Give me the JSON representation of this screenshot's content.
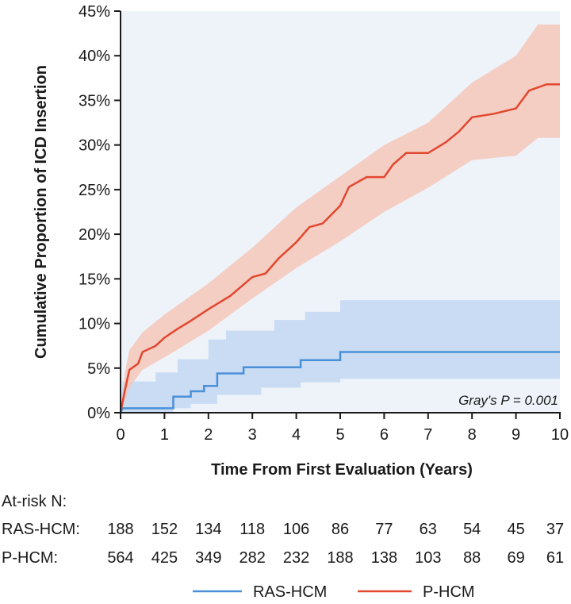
{
  "chart_data": {
    "type": "line",
    "subtype": "cumulative-incidence-step",
    "ylabel": "Cumulative Proportion of ICD Insertion",
    "xlabel": "Time From First Evaluation (Years)",
    "xlim": [
      0,
      10
    ],
    "ylim": [
      0,
      45
    ],
    "x_ticks": [
      "0",
      "1",
      "2",
      "3",
      "4",
      "5",
      "6",
      "7",
      "8",
      "9",
      "10"
    ],
    "y_ticks": [
      "0%",
      "5%",
      "10%",
      "15%",
      "20%",
      "25%",
      "30%",
      "35%",
      "40%",
      "45%"
    ],
    "annotation": "Gray's P = 0.001",
    "grid": false,
    "background_color": "#eef3fa",
    "series": [
      {
        "name": "RAS-HCM",
        "color": "#4a90d9",
        "band_color": "#c9dcf3",
        "points": [
          [
            0,
            0
          ],
          [
            0.05,
            0.5
          ],
          [
            1.2,
            0.5
          ],
          [
            1.2,
            1.8
          ],
          [
            1.6,
            1.8
          ],
          [
            1.6,
            2.4
          ],
          [
            1.9,
            2.4
          ],
          [
            1.9,
            3.0
          ],
          [
            2.2,
            3.0
          ],
          [
            2.2,
            4.4
          ],
          [
            2.8,
            4.4
          ],
          [
            2.8,
            5.1
          ],
          [
            4.1,
            5.1
          ],
          [
            4.1,
            5.9
          ],
          [
            5.0,
            5.9
          ],
          [
            5.0,
            6.8
          ],
          [
            10,
            6.8
          ]
        ],
        "ci_upper": [
          [
            0,
            0
          ],
          [
            0.05,
            3.5
          ],
          [
            0.8,
            3.5
          ],
          [
            0.8,
            4.5
          ],
          [
            1.3,
            4.5
          ],
          [
            1.3,
            6.0
          ],
          [
            2.0,
            6.0
          ],
          [
            2.0,
            8.2
          ],
          [
            2.4,
            8.2
          ],
          [
            2.4,
            9.2
          ],
          [
            3.5,
            9.2
          ],
          [
            3.5,
            10.4
          ],
          [
            4.2,
            10.4
          ],
          [
            4.2,
            11.3
          ],
          [
            5.0,
            11.3
          ],
          [
            5.0,
            12.6
          ],
          [
            10,
            12.6
          ]
        ],
        "ci_lower": [
          [
            0,
            0
          ],
          [
            1.2,
            0
          ],
          [
            1.2,
            0.5
          ],
          [
            1.6,
            0.5
          ],
          [
            1.6,
            1.0
          ],
          [
            2.2,
            1.0
          ],
          [
            2.2,
            2.0
          ],
          [
            3.2,
            2.0
          ],
          [
            3.2,
            2.8
          ],
          [
            4.1,
            2.8
          ],
          [
            4.1,
            3.4
          ],
          [
            5.0,
            3.4
          ],
          [
            5.0,
            3.8
          ],
          [
            10,
            3.8
          ]
        ]
      },
      {
        "name": "P-HCM",
        "color": "#e2472f",
        "band_color": "#f4c7b8",
        "points": [
          [
            0,
            0
          ],
          [
            0.1,
            2.5
          ],
          [
            0.2,
            4.8
          ],
          [
            0.4,
            5.5
          ],
          [
            0.5,
            6.8
          ],
          [
            0.8,
            7.5
          ],
          [
            1,
            8.4
          ],
          [
            1.3,
            9.4
          ],
          [
            1.6,
            10.3
          ],
          [
            2,
            11.6
          ],
          [
            2.5,
            13.1
          ],
          [
            3,
            15.2
          ],
          [
            3.3,
            15.6
          ],
          [
            3.6,
            17.3
          ],
          [
            4,
            19.1
          ],
          [
            4.3,
            20.8
          ],
          [
            4.6,
            21.2
          ],
          [
            5,
            23.2
          ],
          [
            5.2,
            25.3
          ],
          [
            5.6,
            26.4
          ],
          [
            6,
            26.4
          ],
          [
            6.2,
            27.8
          ],
          [
            6.5,
            29.1
          ],
          [
            7,
            29.1
          ],
          [
            7.4,
            30.3
          ],
          [
            7.7,
            31.5
          ],
          [
            8,
            33.1
          ],
          [
            8.5,
            33.5
          ],
          [
            9,
            34.1
          ],
          [
            9.3,
            36.1
          ],
          [
            9.7,
            36.8
          ],
          [
            10,
            36.8
          ]
        ],
        "ci_upper": [
          [
            0,
            0
          ],
          [
            0.1,
            4.5
          ],
          [
            0.2,
            7
          ],
          [
            0.5,
            9
          ],
          [
            1,
            11
          ],
          [
            2,
            14.5
          ],
          [
            3,
            18.5
          ],
          [
            4,
            23
          ],
          [
            5,
            26.5
          ],
          [
            6,
            30
          ],
          [
            7,
            32.5
          ],
          [
            8,
            37
          ],
          [
            9,
            40
          ],
          [
            9.5,
            43.5
          ],
          [
            10,
            43.5
          ]
        ],
        "ci_lower": [
          [
            0,
            0
          ],
          [
            0.2,
            2.8
          ],
          [
            0.5,
            4.8
          ],
          [
            1,
            6.2
          ],
          [
            2,
            9.2
          ],
          [
            3,
            12.8
          ],
          [
            4,
            16.2
          ],
          [
            5,
            19.2
          ],
          [
            6,
            22.5
          ],
          [
            7,
            25.2
          ],
          [
            8,
            28.3
          ],
          [
            9,
            28.8
          ],
          [
            9.5,
            30.8
          ],
          [
            10,
            30.8
          ]
        ]
      }
    ],
    "at_risk": {
      "title": "At-risk N:",
      "rows": [
        {
          "label": "RAS-HCM:",
          "values": [
            "188",
            "152",
            "134",
            "118",
            "106",
            "86",
            "77",
            "63",
            "54",
            "45",
            "37"
          ]
        },
        {
          "label": "P-HCM:",
          "values": [
            "564",
            "425",
            "349",
            "282",
            "232",
            "188",
            "138",
            "103",
            "88",
            "69",
            "61"
          ]
        }
      ]
    },
    "legend": {
      "position": "bottom-center",
      "items": [
        {
          "label": "RAS-HCM",
          "color": "#4a90d9"
        },
        {
          "label": "P-HCM",
          "color": "#e2472f"
        }
      ]
    }
  }
}
